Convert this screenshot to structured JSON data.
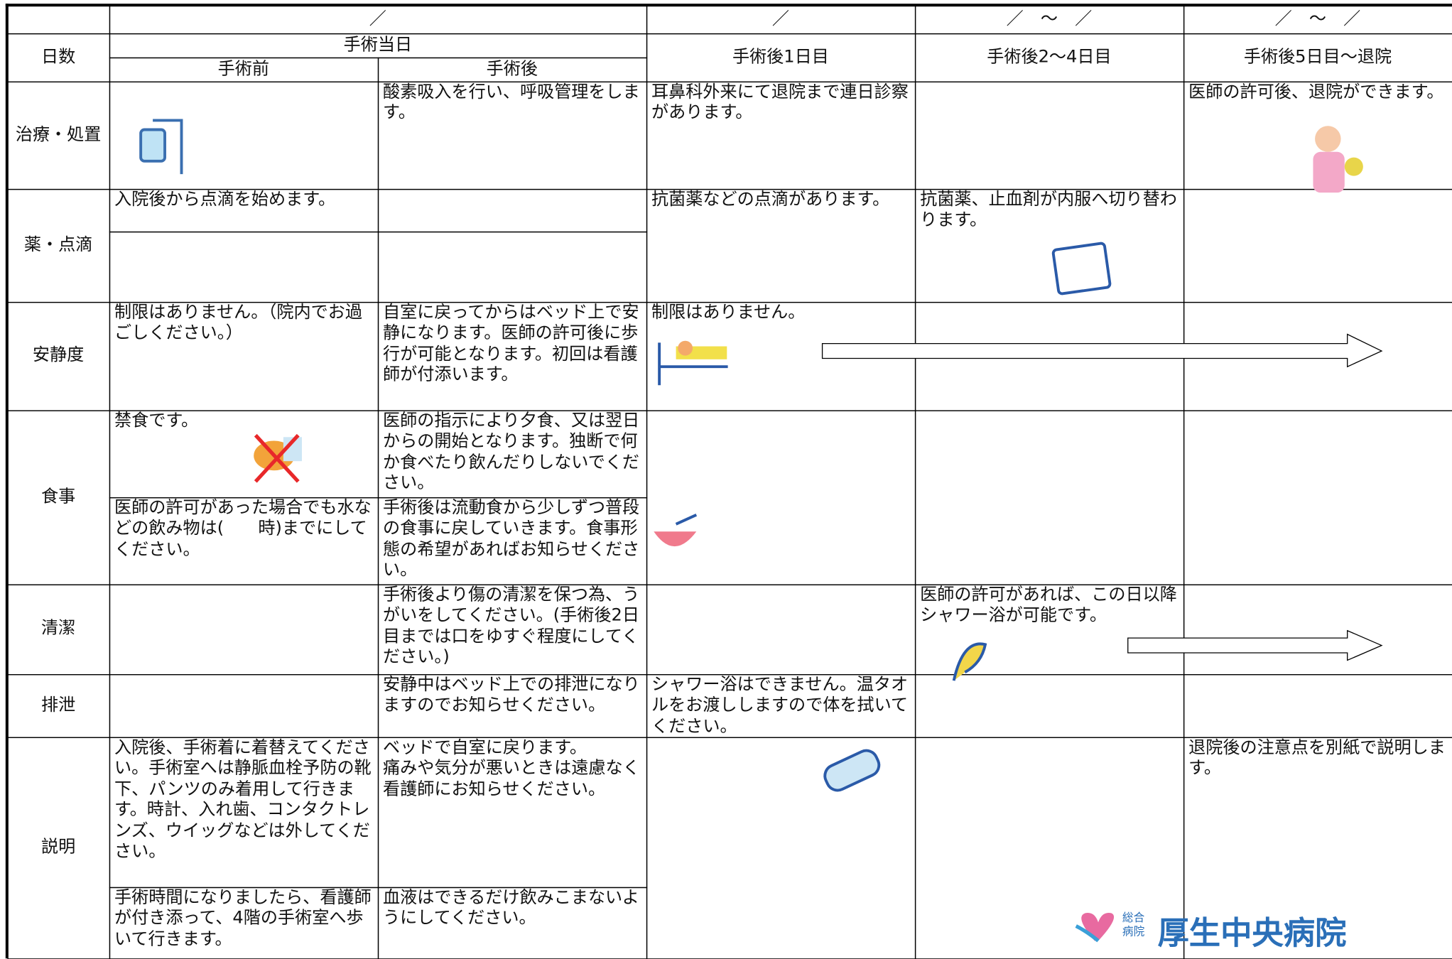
{
  "header": {
    "dates": [
      "／",
      "／",
      "／　～　／",
      "／　～　／"
    ],
    "day_label": "日数",
    "surgery_day": "手術当日",
    "columns": [
      "手術前",
      "手術後",
      "手術後1日目",
      "手術後2～4日目",
      "手術後5日目～退院"
    ]
  },
  "rows": [
    {
      "label": "治療・処置",
      "post": "酸素吸入を行い、呼吸管理をします。",
      "d1": "耳鼻科外来にて退院まで連日診察があります。",
      "d5": "医師の許可後、退院ができます。"
    },
    {
      "label": "薬・点滴",
      "pre": "入院後から点滴を始めます。",
      "d1": "抗菌薬などの点滴があります。",
      "d2": "抗菌薬、止血剤が内服へ切り替わります。"
    },
    {
      "label": "安静度",
      "pre": "制限はありません。（院内でお過ごしください。）",
      "post": "自室に戻ってからはベッド上で安静になります。医師の許可後に歩行が可能となります。初回は看護師が付添います。",
      "d1": "制限はありません。"
    },
    {
      "label": "食事",
      "pre": [
        "禁食です。",
        "医師の許可があった場合でも水などの飲み物は(　　時)までにしてください。"
      ],
      "post": [
        "医師の指示により夕食、又は翌日からの開始となります。独断で何か食べたり飲んだりしないでください。",
        "手術後は流動食から少しずつ普段の食事に戻していきます。食事形態の希望があればお知らせください。"
      ]
    },
    {
      "label": "清潔",
      "post": "手術後より傷の清潔を保つ為、うがいをしてください。(手術後2日目までは口をゆすぐ程度にしてください。)",
      "d2": "医師の許可があれば、この日以降シャワー浴が可能です。"
    },
    {
      "label": "排泄",
      "post": "安静中はベッド上での排泄になりますのでお知らせください。",
      "d1": "シャワー浴はできません。温タオルをお渡ししますので体を拭いてください。"
    },
    {
      "label": "説明",
      "pre": [
        "入院後、手術着に着替えてください。手術室へは静脈血栓予防の靴下、パンツのみ着用して行きます。時計、入れ歯、コンタクトレンズ、ウイッグなどは外してください。",
        "手術時間になりましたら、看護師が付き添って、4階の手術室へ歩いて行きます。"
      ],
      "post": [
        "ベッドで自室に戻ります。\n痛みや気分が悪いときは遠慮なく看護師にお知らせください。",
        "血液はできるだけ飲みこまないようにしてください。"
      ],
      "d5": "退院後の注意点を別紙で説明します。"
    }
  ],
  "logo": {
    "small": "総合病院",
    "name": "厚生中央病院"
  }
}
